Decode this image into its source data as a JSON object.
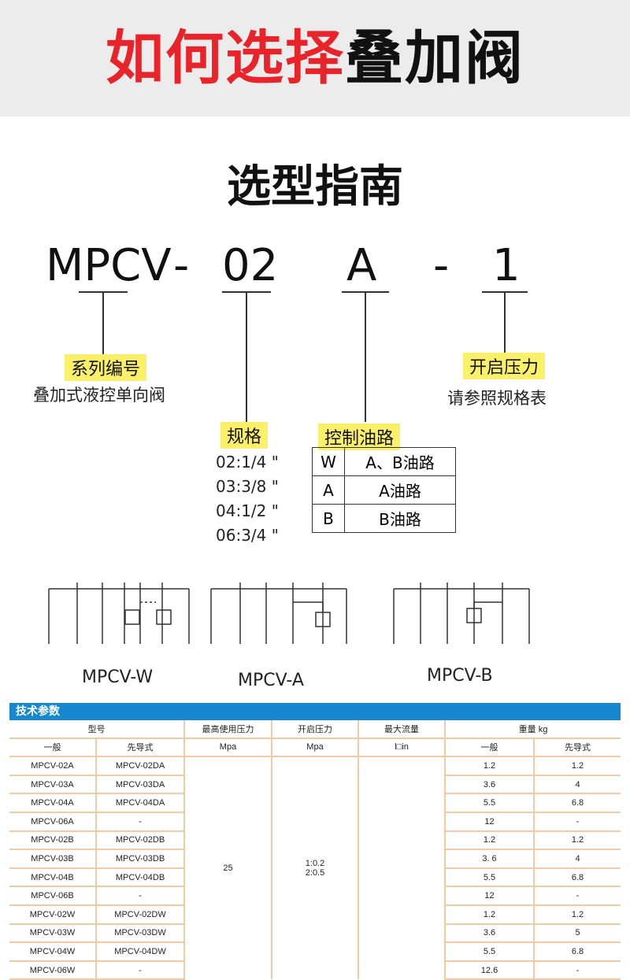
{
  "banner": {
    "title_red": "如何选择",
    "title_black": "叠加阀"
  },
  "subtitle": "选型指南",
  "code": {
    "series": "MPCV",
    "dash1": "-",
    "size": "02",
    "port": "A",
    "dash2": "-",
    "pressure": "1"
  },
  "series_tag": "系列编号",
  "series_desc": "叠加式液控单向阀",
  "pressure_tag": "开启压力",
  "pressure_desc": "请参照规格表",
  "size_tag": "规格",
  "sizes": [
    "02:1/4 \"",
    "03:3/8 \"",
    "04:1/2 \"",
    "06:3/4 \""
  ],
  "control_tag": "控制油路",
  "control": [
    [
      "W",
      "A、B油路"
    ],
    [
      "A",
      "A油路"
    ],
    [
      "B",
      "B油路"
    ]
  ],
  "symbols": [
    "MPCV-W",
    "MPCV-A",
    "MPCV-B"
  ],
  "table": {
    "title": "技术参数",
    "h1": [
      "型号",
      "最高使用压力",
      "开启压力",
      "最大流量",
      "重量 kg"
    ],
    "h2": [
      "一般",
      "先导式",
      "Mpa",
      "Mpa",
      "l□in",
      "一般",
      "先导式"
    ],
    "max_pressure": "25",
    "crack_pressure": [
      "1:0.2",
      "2:0.5"
    ],
    "rows": [
      [
        "MPCV-02A",
        "MPCV-02DA",
        "1.2",
        "1.2"
      ],
      [
        "MPCV-03A",
        "MPCV-03DA",
        "3.6",
        "4"
      ],
      [
        "MPCV-04A",
        "MPCV-04DA",
        "5.5",
        "6.8"
      ],
      [
        "MPCV-06A",
        "-",
        "12",
        "-"
      ],
      [
        "MPCV-02B",
        "MPCV-02DB",
        "1.2",
        "1.2"
      ],
      [
        "MPCV-03B",
        "MPCV-03DB",
        "3. 6",
        "4"
      ],
      [
        "MPCV-04B",
        "MPCV-04DB",
        "5.5",
        "6.8"
      ],
      [
        "MPCV-06B",
        "-",
        "12",
        "-"
      ],
      [
        "MPCV-02W",
        "MPCV-02DW",
        "1.2",
        "1.2"
      ],
      [
        "MPCV-03W",
        "MPCV-03DW",
        "3.6",
        "5"
      ],
      [
        "MPCV-04W",
        "MPCV-04DW",
        "5.5",
        "6.8"
      ],
      [
        "MPCV-06W",
        "-",
        "12.6",
        "-"
      ]
    ]
  }
}
